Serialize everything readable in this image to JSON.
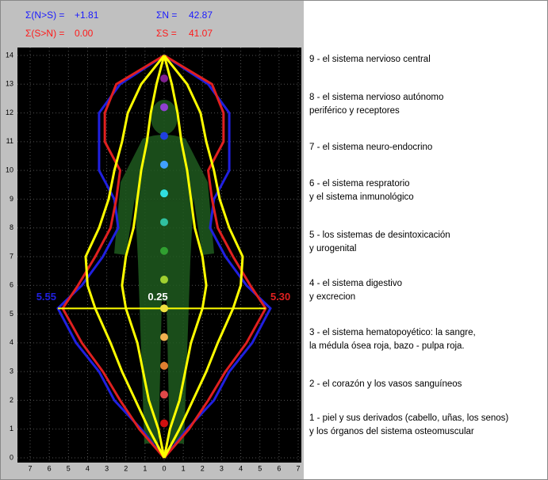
{
  "stats": [
    {
      "label": "Σ(N>S) =",
      "value": "+1.81",
      "color": "#1a1aff"
    },
    {
      "label": "Σ(S>N) =",
      "value": "0.00",
      "color": "#ff1a1a"
    },
    {
      "label": "ΣN =",
      "value": "42.87",
      "color": "#1a1aff"
    },
    {
      "label": "ΣS =",
      "value": "41.07",
      "color": "#ff1a1a"
    }
  ],
  "systems": [
    [
      "9 - el sistema nervioso central"
    ],
    [
      "8 - el sistema nervioso autónomo",
      "periférico y receptores"
    ],
    [
      "7 - el sistema neuro-endocrino"
    ],
    [
      "6 - el sistema respratorio",
      "y el sistema inmunológico"
    ],
    [
      "5 - los sistemas de desintoxicación",
      "y urogenital"
    ],
    [
      "4 - el sistema digestivo",
      "y excrecion"
    ],
    [
      "3 - el sistema hematopoyético: la sangre,",
      "la médula ósea roja, bazo - pulpa roja."
    ],
    [
      "2 - el corazón y los vasos sanguíneos"
    ],
    [
      "1 - piel y sus derivados (cabello, uñas, los senos)",
      "y los órganos del sistema osteomuscular"
    ]
  ],
  "chart_data": {
    "type": "profile",
    "y": [
      0,
      1,
      2,
      3,
      4,
      5.2,
      6,
      7,
      8,
      9,
      10,
      11,
      12,
      13,
      14
    ],
    "series": [
      {
        "color": "#2020e0",
        "values": [
          0,
          1.2,
          2.6,
          3.4,
          4.6,
          5.55,
          4.3,
          3.2,
          2.4,
          2.6,
          3.4,
          3.4,
          3.4,
          2.3,
          0
        ]
      },
      {
        "color": "#e02020",
        "values": [
          0,
          1.3,
          2.3,
          3.2,
          4.3,
          5.3,
          4.5,
          3.6,
          2.8,
          2.5,
          2.3,
          3.1,
          3.1,
          2.5,
          0
        ]
      },
      {
        "color": "#ffff00",
        "values": [
          0,
          0.8,
          1.5,
          2.2,
          2.8,
          3.6,
          4.0,
          4.1,
          3.4,
          2.9,
          2.6,
          2.2,
          1.9,
          1.2,
          0
        ]
      },
      {
        "color": "#ffff00",
        "values": [
          0,
          0.3,
          0.8,
          1.1,
          1.4,
          2.0,
          2.2,
          2.0,
          1.6,
          1.4,
          1.2,
          0.9,
          0.7,
          0.4,
          0
        ]
      }
    ],
    "level_line": {
      "y": 5.2,
      "left": 5.55,
      "right": 5.3,
      "color": "#ffff00"
    },
    "level_labels": [
      {
        "value": 5.55,
        "label": "5.55",
        "color": "#2020e0"
      },
      {
        "value": 0.25,
        "label": "0.25",
        "color": "#ffffff"
      },
      {
        "value": 5.3,
        "label": "5.30",
        "color": "#e02020"
      }
    ],
    "markers": {
      "y": [
        1.2,
        2.2,
        3.2,
        4.2,
        5.2,
        6.2,
        7.2,
        8.2,
        9.2,
        10.2,
        11.2,
        12.2,
        13.2
      ],
      "colors": [
        "#d01010",
        "#e04848",
        "#e08030",
        "#f0b050",
        "#f0e040",
        "#a0d030",
        "#30a030",
        "#30c0a0",
        "#30e0e0",
        "#40a0ff",
        "#2040e0",
        "#9040d0",
        "#802090"
      ]
    },
    "xlim": [
      -7,
      7
    ],
    "ylim": [
      0,
      14
    ],
    "xticks": [
      {
        "value": -7,
        "label": "7"
      },
      {
        "value": -6,
        "label": "6"
      },
      {
        "value": -5,
        "label": "5"
      },
      {
        "value": -4,
        "label": "4"
      },
      {
        "value": -3,
        "label": "3"
      },
      {
        "value": -2,
        "label": "2"
      },
      {
        "value": -1,
        "label": "1"
      },
      0,
      1,
      2,
      3,
      4,
      5,
      6,
      7
    ],
    "yticks": [
      0,
      1,
      2,
      3,
      4,
      5,
      6,
      7,
      8,
      9,
      10,
      11,
      12,
      13,
      14
    ],
    "grid": true
  }
}
